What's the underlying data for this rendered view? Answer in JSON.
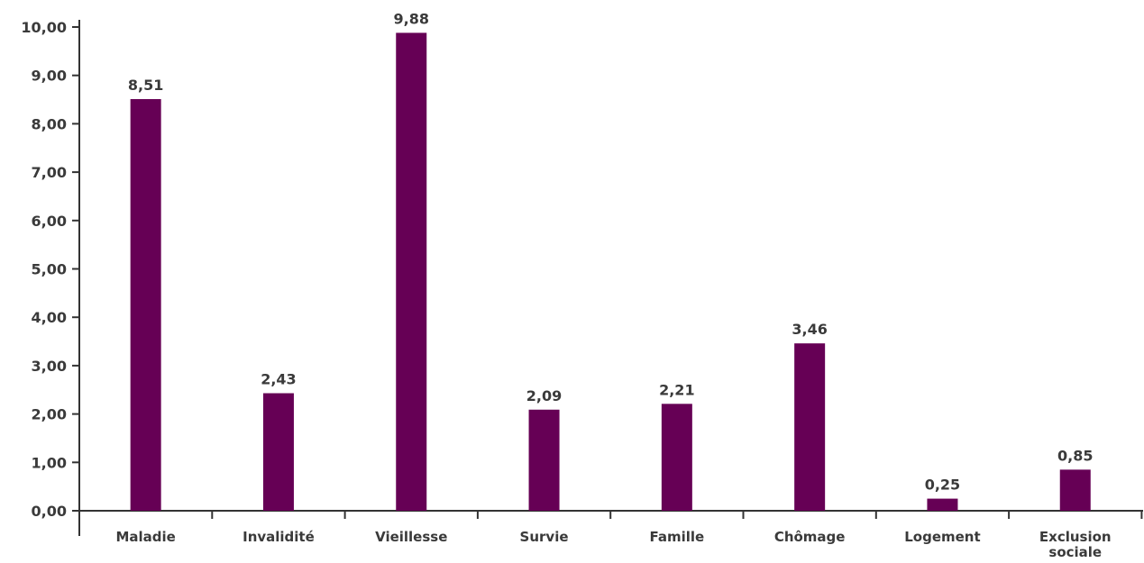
{
  "chart_data": {
    "type": "bar",
    "categories": [
      "Maladie",
      "Invalidité",
      "Vieillesse",
      "Survie",
      "Famille",
      "Chômage",
      "Logement",
      "Exclusion sociale"
    ],
    "values": [
      8.51,
      2.43,
      9.88,
      2.09,
      2.21,
      3.46,
      0.25,
      0.85
    ],
    "data_labels": [
      "8,51",
      "2,43",
      "9,88",
      "2,09",
      "2,21",
      "3,46",
      "0,25",
      "0,85"
    ],
    "y_ticks": [
      "0,00",
      "1,00",
      "2,00",
      "3,00",
      "4,00",
      "5,00",
      "6,00",
      "7,00",
      "8,00",
      "9,00",
      "10,00"
    ],
    "ylim": [
      0,
      10
    ],
    "bar_color": "#660055",
    "axis_color": "#333333",
    "grid": false,
    "title": "",
    "xlabel": "",
    "ylabel": ""
  }
}
